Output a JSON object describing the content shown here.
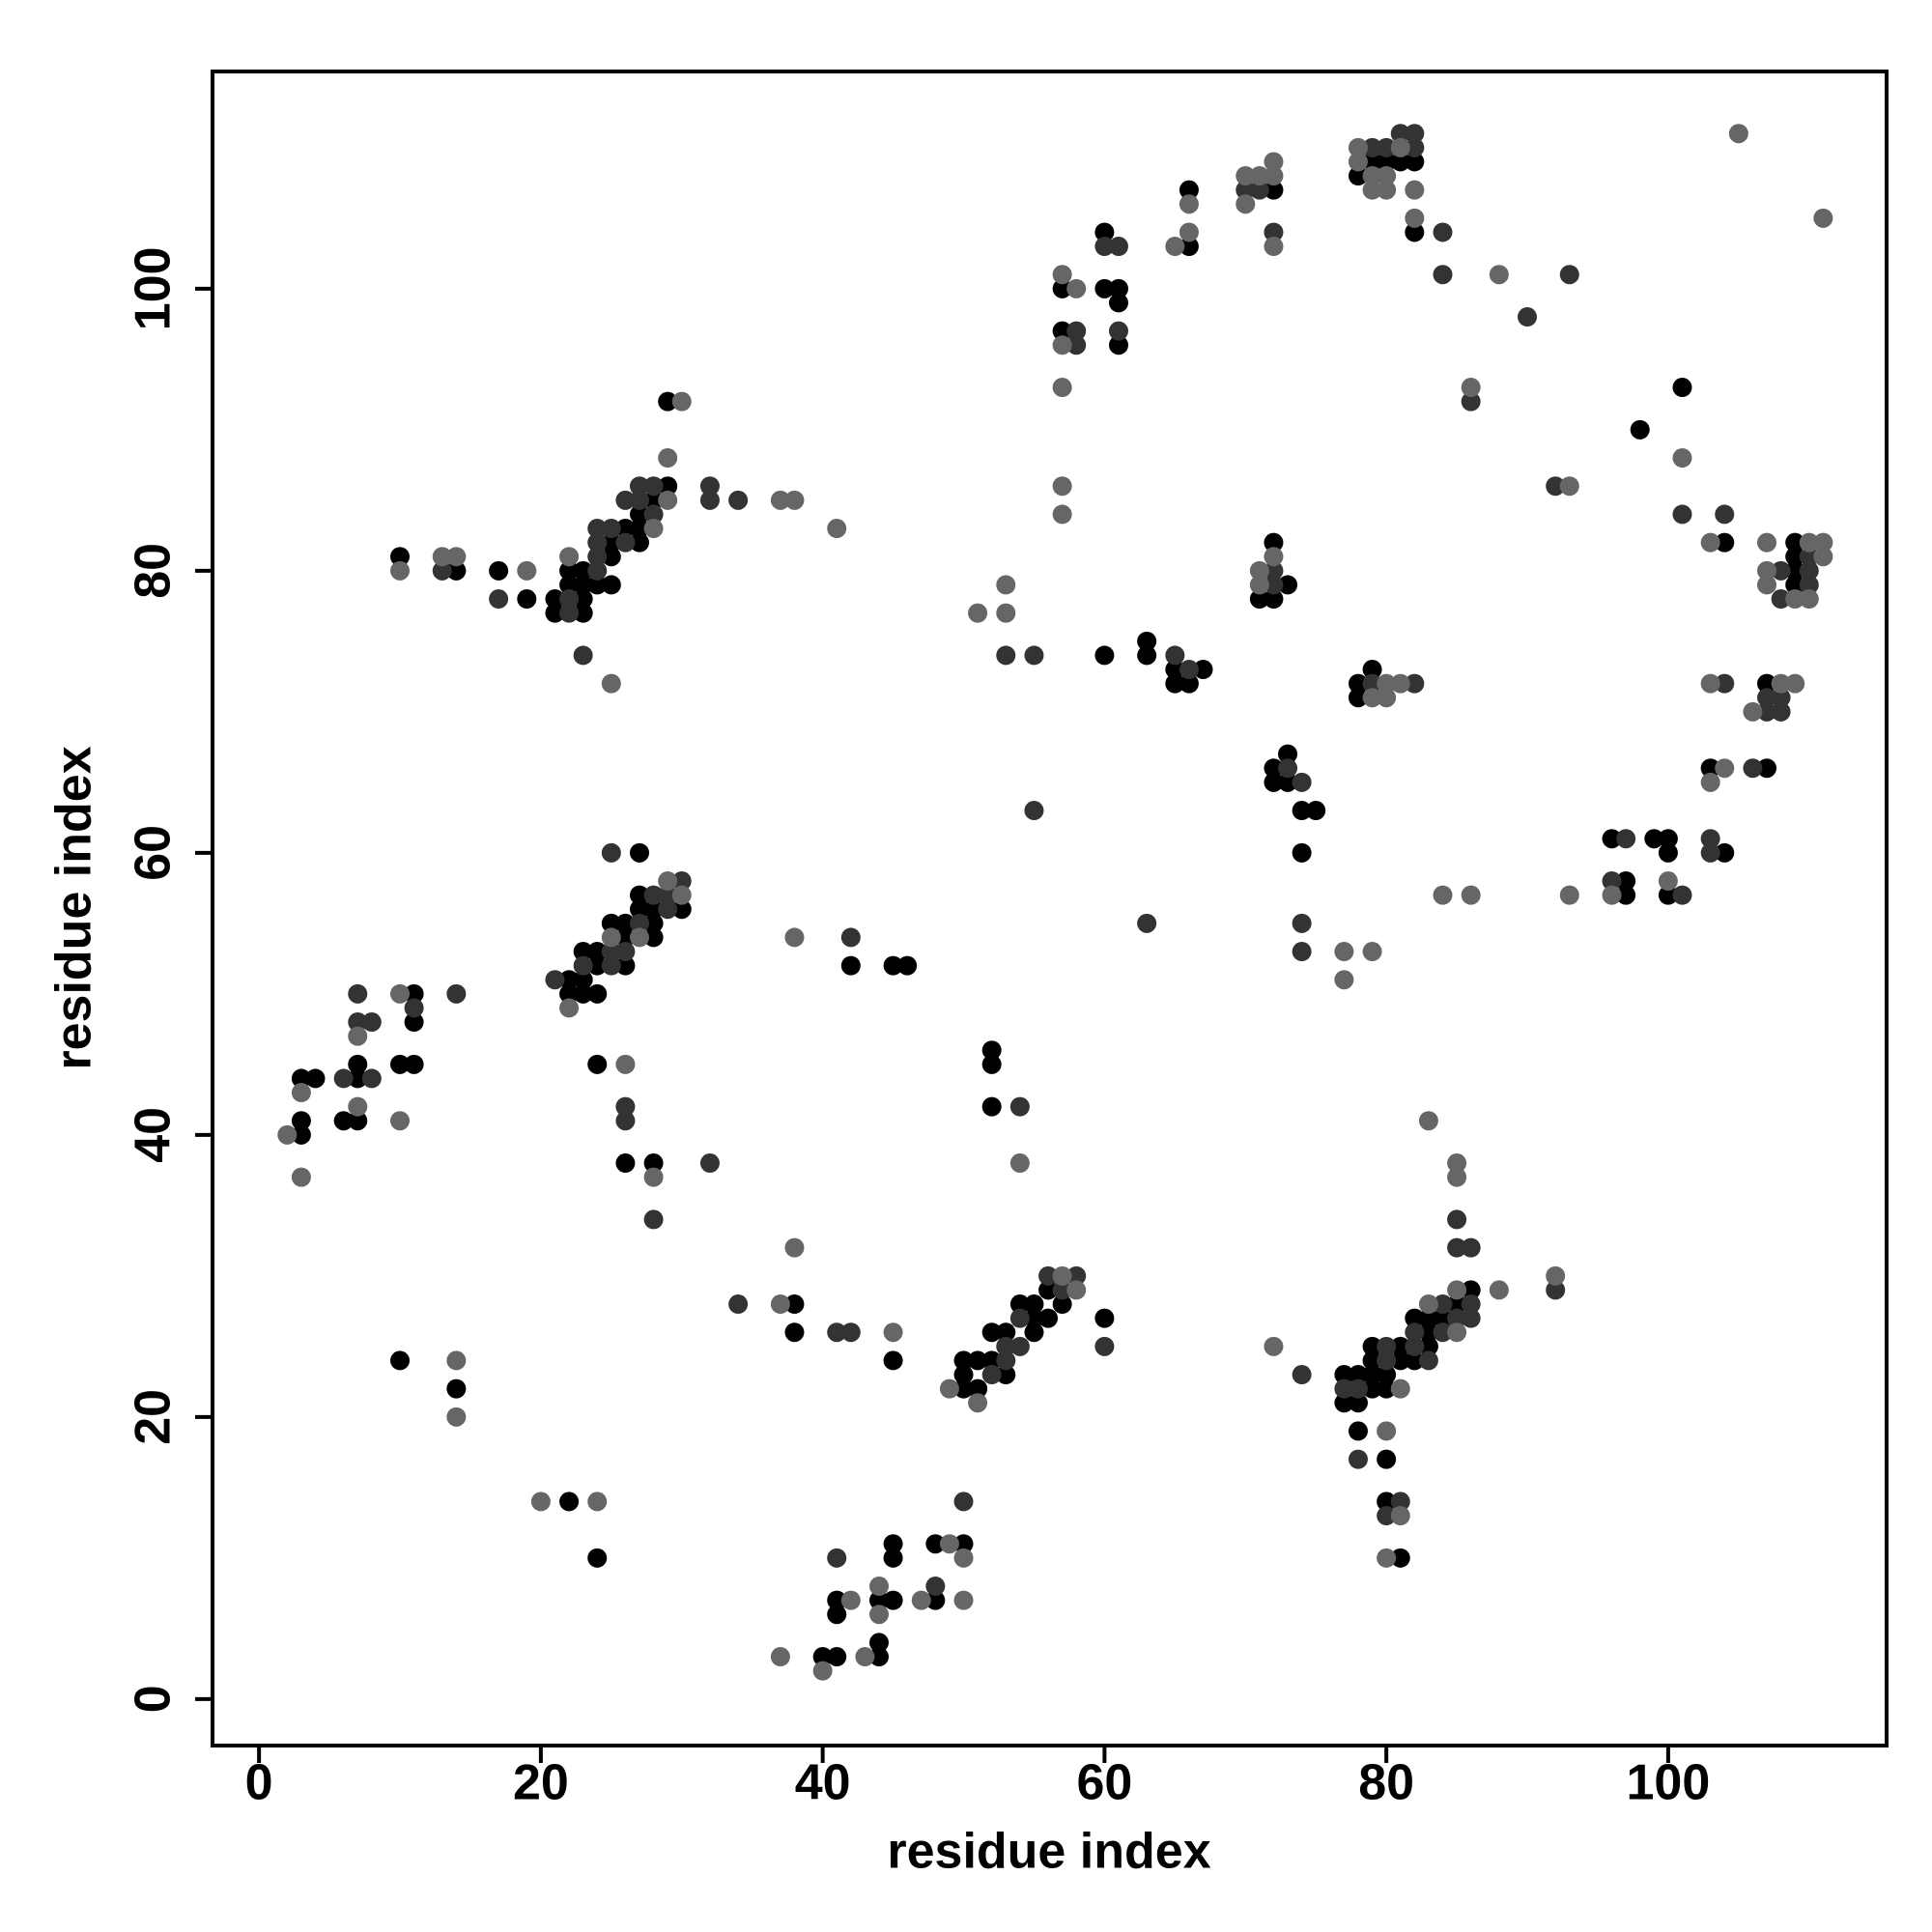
{
  "chart_data": {
    "type": "scatter",
    "xlabel": "residue index",
    "ylabel": "residue index",
    "xlim": [
      -3.3,
      115.5
    ],
    "ylim": [
      -3.3,
      115.4
    ],
    "xticks": [
      0,
      20,
      40,
      60,
      80,
      100
    ],
    "yticks": [
      0,
      20,
      40,
      60,
      80,
      100
    ],
    "series": [
      {
        "color": "#000000",
        "x": [
          3,
          3,
          3,
          4,
          6,
          7,
          7,
          7,
          10,
          11,
          11,
          11,
          10,
          14,
          22,
          24,
          22,
          22,
          23,
          23,
          23,
          24,
          24,
          24,
          25,
          26,
          26,
          26,
          27,
          27,
          28,
          28,
          28,
          30,
          27,
          24,
          26,
          28,
          42,
          45,
          46,
          38,
          38,
          45,
          40,
          41,
          41,
          41,
          44,
          44,
          44,
          45,
          45,
          45,
          48,
          48,
          50,
          50,
          50,
          50,
          51,
          51,
          52,
          52,
          53,
          53,
          54,
          55,
          55,
          55,
          56,
          56,
          57,
          60,
          52,
          52,
          52,
          60,
          63,
          63,
          65,
          65,
          66,
          67,
          10,
          14,
          17,
          19,
          21,
          21,
          22,
          22,
          23,
          23,
          23,
          23,
          24,
          25,
          25,
          25,
          26,
          27,
          27,
          27,
          28,
          29,
          29,
          57,
          57,
          60,
          60,
          61,
          61,
          61,
          66,
          66,
          72,
          71,
          72,
          72,
          73,
          72,
          72,
          73,
          73,
          74,
          75,
          74,
          78,
          78,
          79,
          78,
          79,
          80,
          81,
          82,
          82,
          98,
          101,
          104,
          109,
          109,
          109,
          109,
          107,
          103,
          107,
          96,
          97,
          97,
          99,
          100,
          100,
          100,
          104,
          77,
          77,
          78,
          78,
          78,
          79,
          79,
          79,
          79,
          80,
          80,
          80,
          80,
          81,
          81,
          81,
          82,
          82,
          83,
          83,
          83,
          84,
          85,
          86
        ],
        "values": [
          40,
          41,
          44,
          44,
          41,
          41,
          44,
          45,
          45,
          45,
          50,
          48,
          24,
          22,
          14,
          10,
          51,
          50,
          50,
          51,
          53,
          53,
          52,
          50,
          55,
          55,
          54,
          52,
          56,
          57,
          56,
          55,
          54,
          56,
          60,
          45,
          38,
          38,
          52,
          52,
          52,
          28,
          26,
          24,
          3,
          3,
          6,
          7,
          3,
          4,
          7,
          7,
          10,
          11,
          7,
          11,
          11,
          22,
          23,
          24,
          22,
          24,
          24,
          26,
          23,
          26,
          28,
          26,
          27,
          28,
          27,
          29,
          28,
          27,
          46,
          45,
          42,
          74,
          74,
          75,
          73,
          72,
          72,
          73,
          81,
          80,
          80,
          78,
          77,
          78,
          79,
          80,
          77,
          78,
          79,
          80,
          79,
          79,
          81,
          82,
          83,
          82,
          83,
          84,
          85,
          86,
          92,
          100,
          97,
          104,
          100,
          100,
          99,
          96,
          103,
          107,
          107,
          78,
          78,
          82,
          79,
          66,
          65,
          65,
          67,
          63,
          63,
          60,
          72,
          71,
          73,
          108,
          109,
          109,
          109,
          109,
          104,
          90,
          93,
          82,
          82,
          81,
          80,
          79,
          72,
          66,
          66,
          61,
          58,
          57,
          61,
          61,
          60,
          57,
          60,
          21,
          23,
          21,
          23,
          19,
          22,
          23,
          24,
          25,
          22,
          23,
          17,
          14,
          24,
          25,
          10,
          24,
          27,
          25,
          26,
          27,
          27,
          28,
          29
        ]
      },
      {
        "color": "#333333",
        "x": [
          6,
          7,
          8,
          8,
          7,
          11,
          14,
          21,
          23,
          25,
          25,
          26,
          27,
          28,
          29,
          29,
          30,
          25,
          26,
          26,
          28,
          32,
          42,
          34,
          41,
          42,
          41,
          48,
          50,
          52,
          53,
          53,
          54,
          54,
          56,
          57,
          58,
          60,
          54,
          55,
          53,
          55,
          65,
          66,
          63,
          13,
          17,
          22,
          22,
          24,
          24,
          24,
          24,
          25,
          26,
          26,
          27,
          27,
          28,
          28,
          23,
          32,
          32,
          34,
          58,
          58,
          60,
          61,
          61,
          70,
          71,
          72,
          72,
          72,
          73,
          74,
          74,
          74,
          79,
          82,
          79,
          80,
          81,
          82,
          82,
          84,
          84,
          90,
          93,
          86,
          101,
          104,
          92,
          108,
          108,
          110,
          110,
          110,
          104,
          107,
          107,
          108,
          108,
          106,
          97,
          96,
          101,
          103,
          103,
          74,
          77,
          78,
          78,
          80,
          80,
          80,
          81,
          82,
          82,
          83,
          84,
          84,
          85,
          85,
          85,
          86,
          86,
          86,
          92
        ],
        "values": [
          44,
          48,
          48,
          44,
          50,
          49,
          50,
          51,
          52,
          52,
          53,
          53,
          55,
          57,
          56,
          57,
          58,
          60,
          42,
          41,
          34,
          38,
          54,
          28,
          26,
          26,
          10,
          8,
          14,
          23,
          24,
          25,
          25,
          27,
          30,
          29,
          30,
          25,
          42,
          63,
          74,
          74,
          74,
          73,
          55,
          80,
          78,
          77,
          78,
          80,
          81,
          82,
          83,
          83,
          82,
          85,
          85,
          86,
          84,
          86,
          74,
          86,
          85,
          85,
          97,
          96,
          103,
          103,
          97,
          107,
          107,
          104,
          79,
          80,
          66,
          65,
          55,
          53,
          72,
          72,
          110,
          110,
          111,
          110,
          111,
          104,
          101,
          98,
          101,
          92,
          84,
          84,
          86,
          80,
          78,
          81,
          80,
          79,
          72,
          71,
          70,
          71,
          70,
          66,
          61,
          58,
          57,
          61,
          60,
          23,
          22,
          22,
          17,
          25,
          24,
          13,
          14,
          25,
          26,
          24,
          26,
          28,
          27,
          32,
          34,
          27,
          28,
          32,
          29
        ]
      },
      {
        "color": "#666666",
        "x": [
          2,
          3,
          3,
          7,
          7,
          10,
          10,
          14,
          14,
          20,
          24,
          22,
          25,
          27,
          29,
          30,
          26,
          28,
          38,
          37,
          38,
          45,
          37,
          40,
          42,
          43,
          44,
          44,
          47,
          49,
          50,
          50,
          49,
          51,
          57,
          58,
          54,
          51,
          53,
          53,
          10,
          13,
          14,
          19,
          22,
          28,
          29,
          29,
          30,
          25,
          37,
          38,
          41,
          57,
          58,
          57,
          57,
          57,
          57,
          65,
          66,
          66,
          70,
          70,
          71,
          72,
          72,
          72,
          71,
          71,
          72,
          77,
          77,
          79,
          79,
          80,
          80,
          81,
          78,
          78,
          79,
          79,
          80,
          80,
          81,
          82,
          82,
          88,
          86,
          105,
          111,
          101,
          103,
          93,
          107,
          107,
          107,
          109,
          110,
          110,
          111,
          111,
          103,
          106,
          108,
          109,
          103,
          104,
          96,
          100,
          84,
          86,
          93,
          72,
          80,
          80,
          81,
          81,
          83,
          85,
          85,
          85,
          85,
          83,
          88,
          92
        ],
        "values": [
          40,
          43,
          37,
          42,
          47,
          41,
          50,
          24,
          20,
          14,
          14,
          49,
          54,
          54,
          58,
          57,
          45,
          37,
          54,
          28,
          32,
          26,
          3,
          2,
          7,
          3,
          6,
          8,
          7,
          11,
          10,
          7,
          22,
          21,
          30,
          29,
          38,
          77,
          77,
          79,
          80,
          81,
          81,
          80,
          81,
          83,
          85,
          88,
          92,
          72,
          85,
          85,
          83,
          101,
          100,
          96,
          93,
          86,
          84,
          103,
          104,
          106,
          106,
          108,
          108,
          108,
          109,
          103,
          79,
          80,
          81,
          53,
          51,
          53,
          71,
          71,
          72,
          72,
          109,
          110,
          108,
          107,
          107,
          108,
          110,
          107,
          105,
          101,
          93,
          111,
          105,
          88,
          82,
          86,
          82,
          80,
          79,
          78,
          82,
          78,
          82,
          81,
          72,
          70,
          72,
          72,
          65,
          66,
          57,
          58,
          57,
          57,
          57,
          25,
          19,
          10,
          22,
          13,
          28,
          26,
          29,
          37,
          38,
          41,
          29,
          30
        ]
      }
    ]
  }
}
